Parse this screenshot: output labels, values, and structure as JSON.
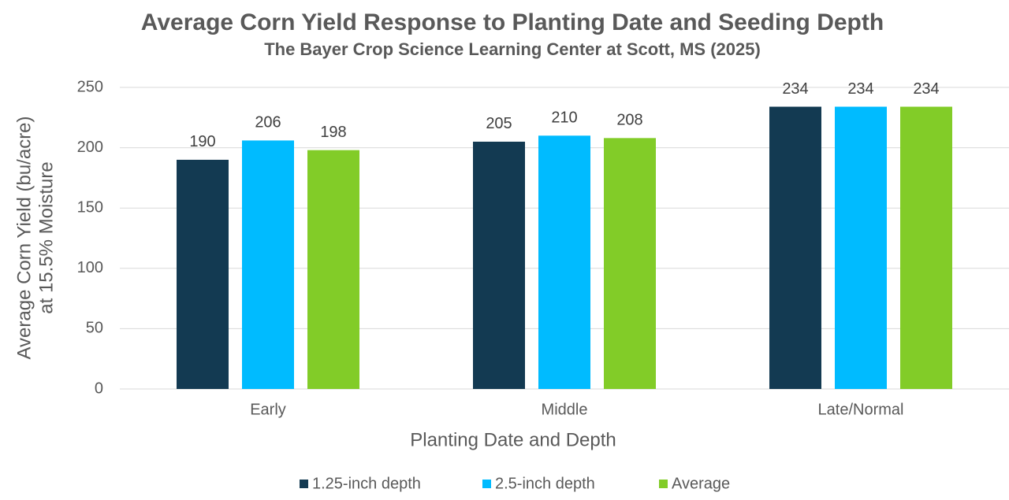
{
  "chart_data": {
    "type": "bar",
    "title": "Average Corn Yield Response to Planting Date and Seeding Depth",
    "subtitle": "The Bayer Crop Science Learning Center at Scott, MS (2025)",
    "x_label": "Planting Date and Depth",
    "y_label": [
      "Average Corn Yield (bu/acre)",
      "at 15.5% Moisture"
    ],
    "categories": [
      "Early",
      "Middle",
      "Late/Normal"
    ],
    "series": [
      {
        "name": "1.25-inch depth",
        "color": "#133a52",
        "values": [
          190,
          205,
          234
        ]
      },
      {
        "name": "2.5-inch depth",
        "color": "#00bbff",
        "values": [
          206,
          210,
          234
        ]
      },
      {
        "name": "Average",
        "color": "#82cc28",
        "values": [
          198,
          208,
          234
        ]
      }
    ],
    "ylim": [
      0,
      250
    ],
    "yticks": [
      0,
      50,
      100,
      150,
      200,
      250
    ],
    "grid": true,
    "legend": "bottom"
  }
}
